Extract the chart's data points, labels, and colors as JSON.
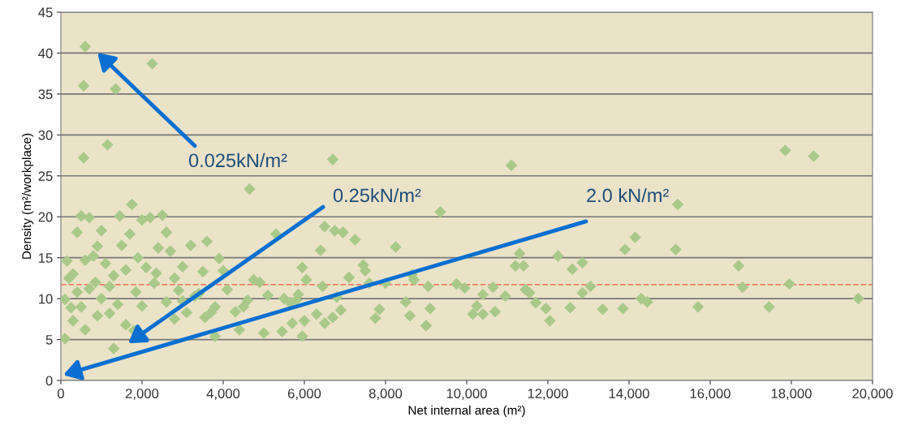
{
  "chart_data": {
    "type": "scatter",
    "xlabel": "Net internal area (m²)",
    "ylabel": "Density (m²/workplace)",
    "xlim": [
      0,
      20000
    ],
    "xticks": [
      {
        "value": 0,
        "label": "0"
      },
      {
        "value": 2000,
        "label": "2,000"
      },
      {
        "value": 4000,
        "label": "4,000"
      },
      {
        "value": 6000,
        "label": "6,000"
      },
      {
        "value": 8000,
        "label": "8,000"
      },
      {
        "value": 10000,
        "label": "10,000"
      },
      {
        "value": 12000,
        "label": "12,000"
      },
      {
        "value": 14000,
        "label": "14,000"
      },
      {
        "value": 16000,
        "label": "16,000"
      },
      {
        "value": 18000,
        "label": "18,000"
      },
      {
        "value": 20000,
        "label": "20,000"
      }
    ],
    "ylim": [
      0,
      45
    ],
    "yticks": [
      0,
      5,
      10,
      15,
      20,
      25,
      30,
      35,
      40,
      45
    ],
    "grid": "y",
    "marker": "diamond",
    "series": [
      {
        "color": "#a9c98b",
        "x": [
          600,
          560,
          560,
          1350,
          1150,
          2250,
          4650,
          6700,
          11100,
          17850,
          18550,
          9350,
          15200,
          19650,
          17450,
          17950,
          16700,
          16800,
          15700,
          15150,
          14150,
          13900,
          14300,
          14450,
          13850,
          13350,
          12850,
          13050,
          12850,
          12550,
          12600,
          12250,
          11950,
          12050,
          11700,
          11550,
          11400,
          11300,
          11200,
          11450,
          10950,
          10700,
          10400,
          10250,
          10400,
          10150,
          10650,
          9950,
          9750,
          9050,
          9000,
          9100,
          8700,
          8650,
          8500,
          8600,
          8250,
          8000,
          7850,
          7750,
          7500,
          7600,
          7450,
          7250,
          7100,
          6950,
          6750,
          6500,
          6400,
          6450,
          6300,
          6500,
          6700,
          6800,
          6900,
          5950,
          6050,
          5850,
          6000,
          5950,
          5800,
          5650,
          5500,
          5450,
          5300,
          5100,
          5000,
          4900,
          4750,
          4600,
          4500,
          4400,
          4100,
          4000,
          3900,
          3800,
          3600,
          3500,
          3400,
          3200,
          3100,
          3000,
          2900,
          2800,
          2700,
          2600,
          2500,
          2400,
          2350,
          2200,
          2000,
          1900,
          1850,
          1750,
          1700,
          1600,
          1500,
          1450,
          1300,
          1400,
          1200,
          1100,
          1000,
          900,
          850,
          700,
          600,
          500,
          400,
          300,
          250,
          150,
          100,
          100,
          200,
          400,
          600,
          800,
          1000,
          1200,
          1600,
          2000,
          2300,
          2600,
          2800,
          3300,
          3700,
          3800,
          4300,
          5700,
          1800,
          700,
          1300,
          2100,
          3000,
          3550,
          900,
          300,
          500
        ],
        "values": [
          40.8,
          36,
          27.2,
          35.6,
          28.8,
          38.7,
          23.4,
          27,
          26.3,
          28.1,
          27.4,
          20.6,
          21.5,
          10,
          9,
          11.8,
          14,
          11.4,
          9,
          16,
          17.5,
          16,
          10,
          9.6,
          8.8,
          8.7,
          14.4,
          11.5,
          10.7,
          8.9,
          13.6,
          15.2,
          8.8,
          7.3,
          9.5,
          10.7,
          14,
          15.5,
          14,
          11.1,
          10.3,
          8.4,
          8.1,
          9.1,
          10.5,
          8.1,
          11.4,
          11.3,
          11.8,
          11.5,
          6.7,
          8.8,
          12.3,
          12.9,
          9.6,
          7.9,
          16.3,
          11.9,
          8.7,
          7.6,
          13.4,
          11.9,
          14.1,
          17.2,
          12.6,
          18.1,
          18.3,
          18.8,
          15.9,
          11.5,
          8.1,
          7,
          7.7,
          10.2,
          8.6,
          13.8,
          12.3,
          10.5,
          7.3,
          5.4,
          9.8,
          9.5,
          10,
          6,
          17.9,
          10.4,
          5.8,
          12,
          12.3,
          9.8,
          9,
          6.2,
          11.1,
          13.4,
          14.9,
          9,
          17,
          13.3,
          10.6,
          16.5,
          8.3,
          13.9,
          11,
          7.5,
          15.8,
          18.1,
          20.2,
          16.2,
          13.1,
          19.9,
          19.6,
          15,
          10.8,
          21.5,
          17.9,
          13.5,
          16.5,
          20.1,
          3.9,
          9.3,
          11.5,
          14.3,
          18.3,
          7.9,
          12,
          19.9,
          14.7,
          20.1,
          18.1,
          13,
          8.9,
          14.6,
          5.1,
          9.9,
          12.5,
          10.8,
          6.2,
          15.2,
          10,
          8.2,
          6.8,
          9.1,
          11.9,
          9.6,
          12.5,
          10.3,
          8.3,
          5.4,
          8.4,
          7,
          6.1,
          11.2,
          12.8,
          13.8,
          9.7,
          7.7,
          16.4,
          7.3,
          9
        ]
      }
    ],
    "ref_lines": [
      {
        "axis": "y",
        "value": 11.7,
        "color": "#ee7f6a",
        "line_style": "dashed"
      }
    ],
    "annotations": [
      "0.025kN/m²",
      "0.25kN/m²",
      "2.0 kN/m²"
    ]
  }
}
